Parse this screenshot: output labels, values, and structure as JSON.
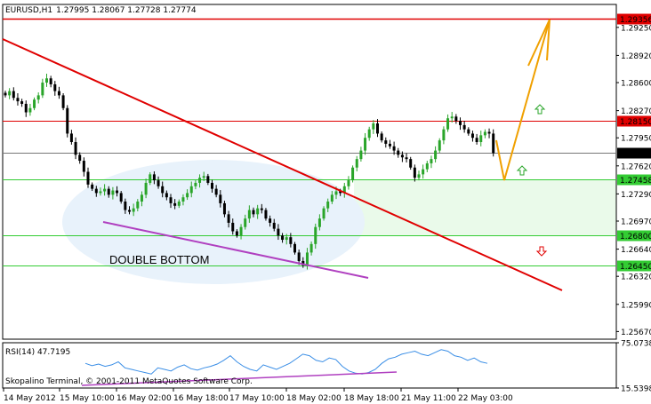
{
  "header": {
    "symbol": "EURUSD,H1",
    "ohlc": "1.27995 1.28067 1.27728 1.27774"
  },
  "colors": {
    "bull": "#2aa52a",
    "bear": "#000000",
    "trendline": "#e00000",
    "support_line": "#b040c0",
    "projection": "#f0a000",
    "resistance_level": "#e00000",
    "support_level": "#33cc33",
    "rsi_line": "#3a8ee6",
    "zone_fill": "#eafaea",
    "pattern_fill": "#e8f2fb"
  },
  "chart_data": [
    {
      "type": "candlestick",
      "title": "EURUSD,H1",
      "ylim": [
        1.2558,
        1.2952
      ],
      "y_ticks": [
        "1.29250",
        "1.28920",
        "1.28600",
        "1.28270",
        "1.27950",
        "1.27620",
        "1.27290",
        "1.26970",
        "1.26640",
        "1.26320",
        "1.25990",
        "1.25670"
      ],
      "x_ticks": [
        "14 May 2012",
        "15 May 10:00",
        "16 May 02:00",
        "16 May 18:00",
        "17 May 10:00",
        "18 May 02:00",
        "18 May 18:00",
        "21 May 11:00",
        "22 May 03:00"
      ],
      "levels": [
        {
          "value": 1.29356,
          "label": "1.29356",
          "kind": "resistance"
        },
        {
          "value": 1.2815,
          "label": "1.28150",
          "kind": "resistance"
        },
        {
          "value": 1.27774,
          "label": "1.27774",
          "kind": "current"
        },
        {
          "value": 1.27458,
          "label": "1.27458",
          "kind": "support"
        },
        {
          "value": 1.268,
          "label": "1.26800",
          "kind": "support"
        },
        {
          "value": 1.2645,
          "label": "1.26450",
          "kind": "support"
        }
      ],
      "pattern_label": "DOUBLE BOTTOM",
      "close": [
        1.2845,
        1.285,
        1.2842,
        1.2838,
        1.2835,
        1.2825,
        1.283,
        1.284,
        1.2845,
        1.286,
        1.2865,
        1.2858,
        1.285,
        1.2845,
        1.283,
        1.28,
        1.279,
        1.2775,
        1.2768,
        1.2755,
        1.274,
        1.2735,
        1.273,
        1.2732,
        1.2735,
        1.2728,
        1.2733,
        1.273,
        1.272,
        1.271,
        1.2708,
        1.2712,
        1.272,
        1.2728,
        1.2742,
        1.2752,
        1.2745,
        1.2738,
        1.273,
        1.2725,
        1.2718,
        1.2715,
        1.272,
        1.2725,
        1.273,
        1.2738,
        1.2742,
        1.2748,
        1.275,
        1.2742,
        1.2735,
        1.2728,
        1.2718,
        1.2705,
        1.2695,
        1.2685,
        1.268,
        1.269,
        1.27,
        1.271,
        1.2705,
        1.2712,
        1.271,
        1.27,
        1.2695,
        1.2688,
        1.268,
        1.2675,
        1.2678,
        1.267,
        1.266,
        1.265,
        1.2645,
        1.266,
        1.267,
        1.269,
        1.27,
        1.2712,
        1.272,
        1.2728,
        1.2732,
        1.273,
        1.2738,
        1.2745,
        1.276,
        1.277,
        1.278,
        1.2795,
        1.2805,
        1.2812,
        1.28,
        1.2792,
        1.2788,
        1.2785,
        1.278,
        1.2775,
        1.2772,
        1.277,
        1.276,
        1.2748,
        1.2752,
        1.2758,
        1.2765,
        1.277,
        1.278,
        1.2792,
        1.2805,
        1.2818,
        1.282,
        1.2815,
        1.281,
        1.2805,
        1.28,
        1.2795,
        1.279,
        1.2798,
        1.2802,
        1.28,
        1.2777
      ],
      "rsi": {
        "label": "RSI(14) 47.7195",
        "ylim": [
          15.5398,
          75.0738
        ],
        "ticks": [
          "75.0738",
          "15.5398"
        ],
        "values": [
          48,
          45,
          47,
          44,
          46,
          50,
          42,
          40,
          38,
          36,
          34,
          42,
          40,
          38,
          43,
          46,
          41,
          39,
          42,
          44,
          47,
          52,
          58,
          50,
          44,
          40,
          38,
          46,
          43,
          40,
          44,
          48,
          54,
          60,
          58,
          52,
          50,
          55,
          53,
          44,
          38,
          35,
          34,
          36,
          40,
          48,
          54,
          56,
          60,
          62,
          64,
          60,
          58,
          62,
          66,
          64,
          58,
          56,
          52,
          55,
          50,
          48
        ]
      },
      "watermark": "Skopalino Terminal, © 2001-2011 MetaQuotes Software Corp."
    }
  ]
}
